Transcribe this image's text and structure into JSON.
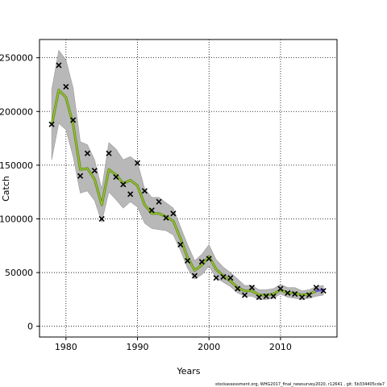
{
  "chart_data": {
    "type": "line",
    "xlabel": "Years",
    "ylabel": "Catch",
    "xlim": [
      1976.3,
      2017.9
    ],
    "ylim": [
      -10000,
      267000
    ],
    "x_ticks": [
      1980,
      1990,
      2000,
      2010
    ],
    "y_ticks": [
      0,
      50000,
      100000,
      150000,
      200000,
      250000
    ],
    "x_tick_labels": [
      "1980",
      "1990",
      "2000",
      "2010"
    ],
    "y_tick_labels": [
      "0",
      "50000",
      "100000",
      "150000",
      "200000",
      "250000"
    ],
    "grid": true,
    "grid_style": "dotted",
    "colors": {
      "band": "#b8b8b8",
      "band_edge": "#9a9a9a",
      "line_main": "#6b8e23",
      "line_highlight": "#9acd32",
      "line_final": "#6a5acd",
      "observed": "#000000"
    },
    "series": [
      {
        "kind": "observed",
        "marker": "x",
        "x": [
          1978,
          1979,
          1980,
          1981,
          1982,
          1983,
          1984,
          1985,
          1986,
          1987,
          1988,
          1989,
          1990,
          1991,
          1992,
          1993,
          1994,
          1995,
          1996,
          1997,
          1998,
          1999,
          2000,
          2001,
          2002,
          2003,
          2004,
          2005,
          2006,
          2007,
          2008,
          2009,
          2010,
          2011,
          2012,
          2013,
          2014,
          2015,
          2016
        ],
        "y": [
          188000,
          243000,
          223000,
          192000,
          140000,
          161000,
          145000,
          100000,
          161000,
          139000,
          132000,
          123000,
          152000,
          126000,
          108000,
          116000,
          101000,
          105000,
          76000,
          61000,
          47000,
          60000,
          63000,
          45000,
          46000,
          45000,
          35000,
          29000,
          36000,
          27000,
          28000,
          28000,
          35000,
          31000,
          30000,
          27000,
          29000,
          36000,
          33000
        ]
      },
      {
        "kind": "fitted",
        "x": [
          1978,
          1979,
          1980,
          1981,
          1982,
          1983,
          1984,
          1985,
          1986,
          1987,
          1988,
          1989,
          1990,
          1991,
          1992,
          1993,
          1994,
          1995,
          1996,
          1997,
          1998,
          1999,
          2000,
          2001,
          2002,
          2003,
          2004,
          2005,
          2006,
          2007,
          2008,
          2009,
          2010,
          2011,
          2012,
          2013,
          2014,
          2015,
          2016
        ],
        "y": [
          187000,
          220000,
          213000,
          188000,
          146000,
          147000,
          137000,
          113000,
          146000,
          141000,
          133000,
          136000,
          131000,
          113000,
          105000,
          105000,
          102000,
          98000,
          82000,
          64000,
          52000,
          57000,
          65000,
          53000,
          47000,
          42000,
          36000,
          33000,
          33000,
          29000,
          29000,
          30000,
          34000,
          31000,
          31000,
          29000,
          30000,
          33000,
          34000
        ]
      },
      {
        "kind": "band_upper",
        "x": [
          1978,
          1979,
          1980,
          1981,
          1982,
          1983,
          1984,
          1985,
          1986,
          1987,
          1988,
          1989,
          1990,
          1991,
          1992,
          1993,
          1994,
          1995,
          1996,
          1997,
          1998,
          1999,
          2000,
          2001,
          2002,
          2003,
          2004,
          2005,
          2006,
          2007,
          2008,
          2009,
          2010,
          2011,
          2012,
          2013,
          2014,
          2015,
          2016
        ],
        "y": [
          220000,
          257000,
          248000,
          222000,
          172000,
          169000,
          155000,
          128000,
          171000,
          165000,
          155000,
          158000,
          153000,
          128000,
          120000,
          120000,
          115000,
          110000,
          93000,
          76000,
          61000,
          67000,
          76000,
          62000,
          55000,
          50000,
          44000,
          38000,
          38000,
          34000,
          34000,
          35000,
          39000,
          36000,
          36000,
          33000,
          34000,
          37000,
          38000
        ]
      },
      {
        "kind": "band_lower",
        "x": [
          1978,
          1979,
          1980,
          1981,
          1982,
          1983,
          1984,
          1985,
          1986,
          1987,
          1988,
          1989,
          1990,
          1991,
          1992,
          1993,
          1994,
          1995,
          1996,
          1997,
          1998,
          1999,
          2000,
          2001,
          2002,
          2003,
          2004,
          2005,
          2006,
          2007,
          2008,
          2009,
          2010,
          2011,
          2012,
          2013,
          2014,
          2015,
          2016
        ],
        "y": [
          155000,
          189000,
          183000,
          158000,
          124000,
          126000,
          117000,
          97000,
          125000,
          118000,
          110000,
          116000,
          111000,
          96000,
          91000,
          90000,
          89000,
          85000,
          71000,
          54000,
          44000,
          48000,
          56000,
          45000,
          41000,
          37000,
          31000,
          28000,
          28000,
          25000,
          25000,
          26000,
          30000,
          27000,
          26000,
          25000,
          26000,
          28000,
          29000
        ]
      }
    ]
  },
  "footer_text": "stockassessment.org, WHG2017_final_newsurvey2020, r12641 , git: 5b334405cda7"
}
